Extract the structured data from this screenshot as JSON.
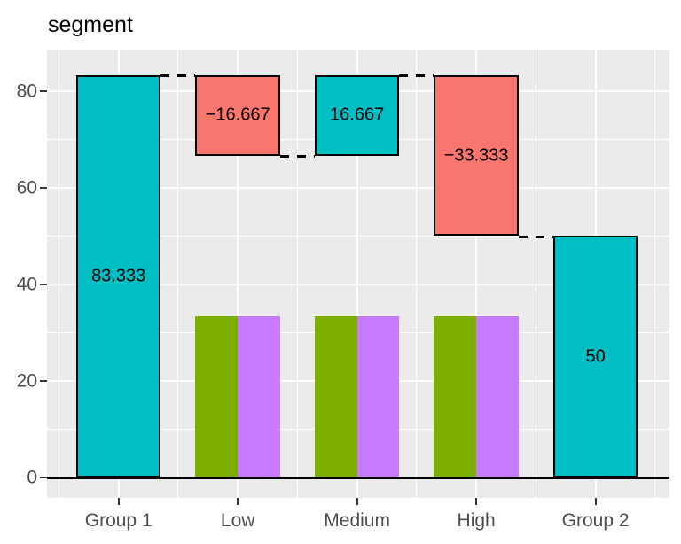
{
  "chart_data": {
    "type": "bar",
    "variant": "waterfall",
    "title": "segment",
    "categories": [
      "Group 1",
      "Low",
      "Medium",
      "High",
      "Group 2"
    ],
    "y_ticks": [
      0,
      20,
      40,
      60,
      80
    ],
    "ylim": [
      -4.2,
      88.6
    ],
    "xlim": [
      0.4,
      5.62
    ],
    "bar_width_units": 0.71,
    "grid": {
      "major": true,
      "minor": true
    },
    "zero_line": true,
    "legend": "none",
    "waterfall_segments": [
      {
        "category": "Group 1",
        "start": 0,
        "end": 83.333,
        "value": 83.333,
        "label": "83.333",
        "direction": "total",
        "color": "#00BFC4"
      },
      {
        "category": "Low",
        "start": 83.333,
        "end": 66.667,
        "value": -16.667,
        "label": "−16.667",
        "direction": "decrease",
        "color": "#F8766D"
      },
      {
        "category": "Medium",
        "start": 66.667,
        "end": 83.333,
        "value": 16.667,
        "label": "16.667",
        "direction": "increase",
        "color": "#00BFC4"
      },
      {
        "category": "High",
        "start": 83.333,
        "end": 50,
        "value": -33.333,
        "label": "−33.333",
        "direction": "decrease",
        "color": "#F8766D"
      },
      {
        "category": "Group 2",
        "start": 0,
        "end": 50,
        "value": 50,
        "label": "50",
        "direction": "total",
        "color": "#00BFC4"
      }
    ],
    "connectors": [
      {
        "y": 83.333,
        "from_category": "Group 1",
        "to_category": "Low"
      },
      {
        "y": 66.667,
        "from_category": "Low",
        "to_category": "Medium"
      },
      {
        "y": 83.333,
        "from_category": "Medium",
        "to_category": "High"
      },
      {
        "y": 50,
        "from_category": "High",
        "to_category": "Group 2"
      }
    ],
    "dodged_series": [
      {
        "name": "series-green",
        "color": "#7CAE00",
        "categories": [
          "Low",
          "Medium",
          "High"
        ],
        "values": [
          33.333,
          33.333,
          33.333
        ]
      },
      {
        "name": "series-purple",
        "color": "#C77CFF",
        "categories": [
          "Low",
          "Medium",
          "High"
        ],
        "values": [
          33.333,
          33.333,
          33.333
        ]
      }
    ],
    "colors": {
      "increase": "#00BFC4",
      "decrease": "#F8766D",
      "panel_bg": "#EBEBEB",
      "grid": "#FFFFFF",
      "axis_text": "#4D4D4D",
      "tick_mark": "#333333",
      "bar_outline": "#000000",
      "value_label": "#000000"
    }
  }
}
